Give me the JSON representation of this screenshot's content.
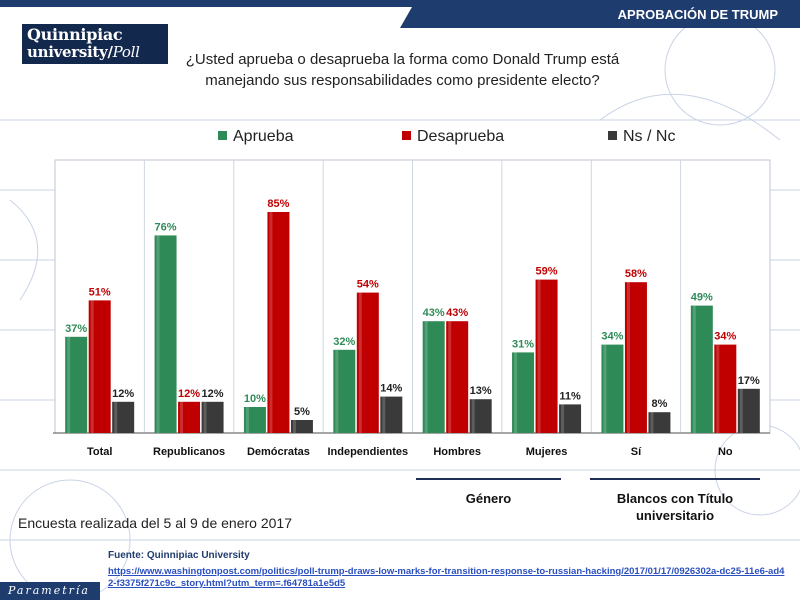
{
  "header": {
    "tag": "APROBACIÓN DE TRUMP"
  },
  "logo": {
    "line1": "Quinnipiac",
    "line2": "university",
    "line2b": "Poll"
  },
  "question": "¿Usted aprueba o desaprueba la forma como Donald Trump está manejando sus responsabilidades como presidente electo?",
  "colors": {
    "aprueba": "#2e8b57",
    "desaprueba": "#c00000",
    "nsnc": "#3a3a3a",
    "accent": "#1f3c6e"
  },
  "chart_data": {
    "type": "bar",
    "title": "",
    "xlabel": "",
    "ylabel": "",
    "ylim": [
      0,
      100
    ],
    "grid": false,
    "legend": "top",
    "categories": [
      "Total",
      "Republicanos",
      "Demócratas",
      "Independientes",
      "Hombres",
      "Mujeres",
      "Sí",
      "No"
    ],
    "series": [
      {
        "name": "Aprueba",
        "values": [
          37,
          76,
          10,
          32,
          43,
          31,
          34,
          49
        ],
        "labels": [
          "37%",
          "76%",
          "10%",
          "32%",
          "43%",
          "31%",
          "34%",
          "49%"
        ]
      },
      {
        "name": "Desaprueba",
        "values": [
          51,
          12,
          85,
          54,
          43,
          59,
          58,
          34
        ],
        "labels": [
          "51%",
          "12%",
          "85%",
          "54%",
          "43%",
          "59%",
          "58%",
          "34%"
        ]
      },
      {
        "name": "Ns / Nc",
        "values": [
          12,
          12,
          5,
          14,
          13,
          11,
          8,
          17
        ],
        "labels": [
          "12%",
          "12%",
          "5%",
          "14%",
          "13%",
          "11%",
          "8%",
          "17%"
        ]
      }
    ],
    "groups": [
      {
        "label": "Género"
      },
      {
        "label": "Blancos con Título universitario"
      }
    ]
  },
  "footer": {
    "note": "Encuesta realizada del 5 al 9 de enero 2017",
    "source": "Fuente: Quinnipiac University",
    "url": "https://www.washingtonpost.com/politics/poll-trump-draws-low-marks-for-transition-response-to-russian-hacking/2017/01/17/0926302a-dc25-11e6-ad42-f3375f271c9c_story.html?utm_term=.f64781a1e5d5"
  },
  "brand": "Parametría"
}
